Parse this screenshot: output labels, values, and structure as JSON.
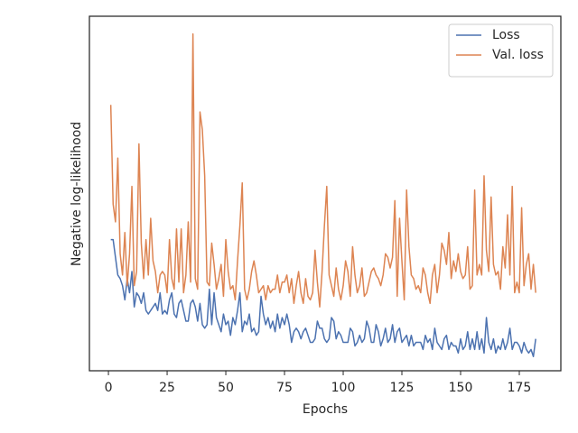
{
  "chart_data": {
    "type": "line",
    "xlabel": "Epochs",
    "ylabel": "Negative log-likelihood",
    "xlim": [
      -8.1,
      192.7
    ],
    "ylim": [
      0,
      1
    ],
    "xticks": [
      0,
      25,
      50,
      75,
      100,
      125,
      150,
      175
    ],
    "legend": "upper right",
    "x": [
      1,
      2,
      3,
      4,
      5,
      6,
      7,
      8,
      9,
      10,
      11,
      12,
      13,
      14,
      15,
      16,
      17,
      18,
      19,
      20,
      21,
      22,
      23,
      24,
      25,
      26,
      27,
      28,
      29,
      30,
      31,
      32,
      33,
      34,
      35,
      36,
      37,
      38,
      39,
      40,
      41,
      42,
      43,
      44,
      45,
      46,
      47,
      48,
      49,
      50,
      51,
      52,
      53,
      54,
      55,
      56,
      57,
      58,
      59,
      60,
      61,
      62,
      63,
      64,
      65,
      66,
      67,
      68,
      69,
      70,
      71,
      72,
      73,
      74,
      75,
      76,
      77,
      78,
      79,
      80,
      81,
      82,
      83,
      84,
      85,
      86,
      87,
      88,
      89,
      90,
      91,
      92,
      93,
      94,
      95,
      96,
      97,
      98,
      99,
      100,
      101,
      102,
      103,
      104,
      105,
      106,
      107,
      108,
      109,
      110,
      111,
      112,
      113,
      114,
      115,
      116,
      117,
      118,
      119,
      120,
      121,
      122,
      123,
      124,
      125,
      126,
      127,
      128,
      129,
      130,
      131,
      132,
      133,
      134,
      135,
      136,
      137,
      138,
      139,
      140,
      141,
      142,
      143,
      144,
      145,
      146,
      147,
      148,
      149,
      150,
      151,
      152,
      153,
      154,
      155,
      156,
      157,
      158,
      159,
      160,
      161,
      162,
      163,
      164,
      165,
      166,
      167,
      168,
      169,
      170,
      171,
      172,
      173,
      174,
      175,
      176,
      177,
      178,
      179,
      180,
      181,
      182
    ],
    "series": [
      {
        "name": "Loss",
        "color": "#4c72b0",
        "values": [
          0.37,
          0.37,
          0.32,
          0.27,
          0.26,
          0.24,
          0.2,
          0.26,
          0.22,
          0.28,
          0.18,
          0.22,
          0.21,
          0.19,
          0.22,
          0.17,
          0.16,
          0.17,
          0.18,
          0.19,
          0.17,
          0.22,
          0.16,
          0.17,
          0.16,
          0.2,
          0.22,
          0.16,
          0.15,
          0.19,
          0.2,
          0.17,
          0.14,
          0.14,
          0.19,
          0.2,
          0.18,
          0.14,
          0.19,
          0.13,
          0.12,
          0.13,
          0.23,
          0.13,
          0.22,
          0.15,
          0.13,
          0.11,
          0.16,
          0.13,
          0.14,
          0.1,
          0.15,
          0.13,
          0.17,
          0.22,
          0.11,
          0.14,
          0.13,
          0.16,
          0.11,
          0.12,
          0.1,
          0.11,
          0.21,
          0.16,
          0.13,
          0.15,
          0.12,
          0.14,
          0.11,
          0.16,
          0.12,
          0.15,
          0.13,
          0.16,
          0.13,
          0.08,
          0.11,
          0.12,
          0.11,
          0.09,
          0.11,
          0.12,
          0.1,
          0.08,
          0.08,
          0.09,
          0.14,
          0.12,
          0.12,
          0.09,
          0.08,
          0.09,
          0.15,
          0.14,
          0.09,
          0.11,
          0.1,
          0.08,
          0.08,
          0.08,
          0.12,
          0.11,
          0.07,
          0.08,
          0.1,
          0.08,
          0.09,
          0.14,
          0.12,
          0.08,
          0.08,
          0.13,
          0.11,
          0.07,
          0.09,
          0.12,
          0.08,
          0.09,
          0.13,
          0.08,
          0.11,
          0.12,
          0.08,
          0.09,
          0.1,
          0.07,
          0.1,
          0.07,
          0.08,
          0.08,
          0.08,
          0.06,
          0.1,
          0.08,
          0.09,
          0.06,
          0.12,
          0.08,
          0.07,
          0.06,
          0.09,
          0.1,
          0.06,
          0.08,
          0.07,
          0.07,
          0.05,
          0.09,
          0.06,
          0.07,
          0.11,
          0.06,
          0.09,
          0.06,
          0.11,
          0.06,
          0.09,
          0.05,
          0.15,
          0.08,
          0.06,
          0.09,
          0.05,
          0.07,
          0.06,
          0.09,
          0.06,
          0.08,
          0.12,
          0.06,
          0.08,
          0.08,
          0.07,
          0.05,
          0.08,
          0.06,
          0.05,
          0.06,
          0.04,
          0.09
        ]
      },
      {
        "name": "Val. loss",
        "color": "#dd8452",
        "values": [
          0.75,
          0.47,
          0.42,
          0.6,
          0.33,
          0.27,
          0.39,
          0.24,
          0.33,
          0.52,
          0.24,
          0.28,
          0.64,
          0.36,
          0.26,
          0.37,
          0.27,
          0.43,
          0.31,
          0.28,
          0.22,
          0.27,
          0.28,
          0.27,
          0.22,
          0.37,
          0.26,
          0.23,
          0.4,
          0.25,
          0.4,
          0.22,
          0.27,
          0.42,
          0.25,
          0.95,
          0.26,
          0.23,
          0.73,
          0.68,
          0.55,
          0.25,
          0.24,
          0.36,
          0.3,
          0.23,
          0.26,
          0.3,
          0.21,
          0.37,
          0.28,
          0.23,
          0.24,
          0.2,
          0.31,
          0.41,
          0.53,
          0.23,
          0.2,
          0.23,
          0.28,
          0.31,
          0.27,
          0.22,
          0.23,
          0.24,
          0.2,
          0.24,
          0.22,
          0.23,
          0.23,
          0.27,
          0.22,
          0.25,
          0.25,
          0.27,
          0.22,
          0.26,
          0.19,
          0.24,
          0.28,
          0.22,
          0.19,
          0.26,
          0.21,
          0.2,
          0.22,
          0.34,
          0.25,
          0.18,
          0.28,
          0.41,
          0.52,
          0.27,
          0.24,
          0.21,
          0.29,
          0.23,
          0.2,
          0.24,
          0.31,
          0.28,
          0.21,
          0.35,
          0.27,
          0.22,
          0.24,
          0.29,
          0.21,
          0.22,
          0.25,
          0.28,
          0.29,
          0.27,
          0.26,
          0.24,
          0.27,
          0.33,
          0.32,
          0.29,
          0.32,
          0.48,
          0.21,
          0.43,
          0.31,
          0.2,
          0.51,
          0.35,
          0.27,
          0.26,
          0.23,
          0.24,
          0.22,
          0.29,
          0.27,
          0.22,
          0.19,
          0.27,
          0.3,
          0.22,
          0.27,
          0.36,
          0.34,
          0.3,
          0.39,
          0.26,
          0.31,
          0.28,
          0.33,
          0.28,
          0.26,
          0.27,
          0.35,
          0.23,
          0.24,
          0.51,
          0.27,
          0.3,
          0.27,
          0.55,
          0.34,
          0.28,
          0.49,
          0.3,
          0.27,
          0.28,
          0.23,
          0.35,
          0.29,
          0.44,
          0.27,
          0.52,
          0.22,
          0.25,
          0.22,
          0.46,
          0.24,
          0.3,
          0.33,
          0.23,
          0.3,
          0.22
        ]
      }
    ]
  }
}
